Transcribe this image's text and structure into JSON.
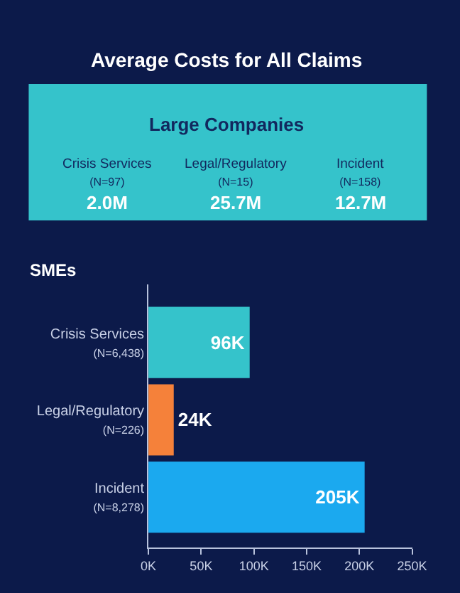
{
  "chart_data": [
    {
      "type": "other",
      "title": "Average Costs for All Claims",
      "subtitle": "Large Companies",
      "color": "#35c3cb",
      "categories": [
        "Crisis Services\n(N=97)",
        "Legal/Regulatory\n(N=15)",
        "Incident\n(N=158)"
      ],
      "values": [
        2.0,
        25.7,
        12.7
      ],
      "value_labels": [
        "2.0M",
        "25.7M",
        "12.7M"
      ]
    },
    {
      "type": "bar",
      "orientation": "horizontal",
      "title": "SMEs",
      "categories": [
        "Crisis Services\n(N=6,438)",
        "Legal/Regulatory\n(N=226)",
        "Incident\n(N=8,278)"
      ],
      "values": [
        96,
        24,
        205
      ],
      "colors": [
        "#35c3cb",
        "#f5813a",
        "#1ba9ef"
      ],
      "value_labels": [
        "96K",
        "24K",
        "205K"
      ],
      "xlim": [
        0,
        250
      ],
      "xticks": [
        {
          "value": 0,
          "label": "0K"
        },
        {
          "value": 50,
          "label": "50K"
        },
        {
          "value": 100,
          "label": "100K"
        },
        {
          "value": 150,
          "label": "150K"
        },
        {
          "value": 200,
          "label": "200K"
        },
        {
          "value": 250,
          "label": "250K"
        }
      ],
      "grid": false
    }
  ]
}
